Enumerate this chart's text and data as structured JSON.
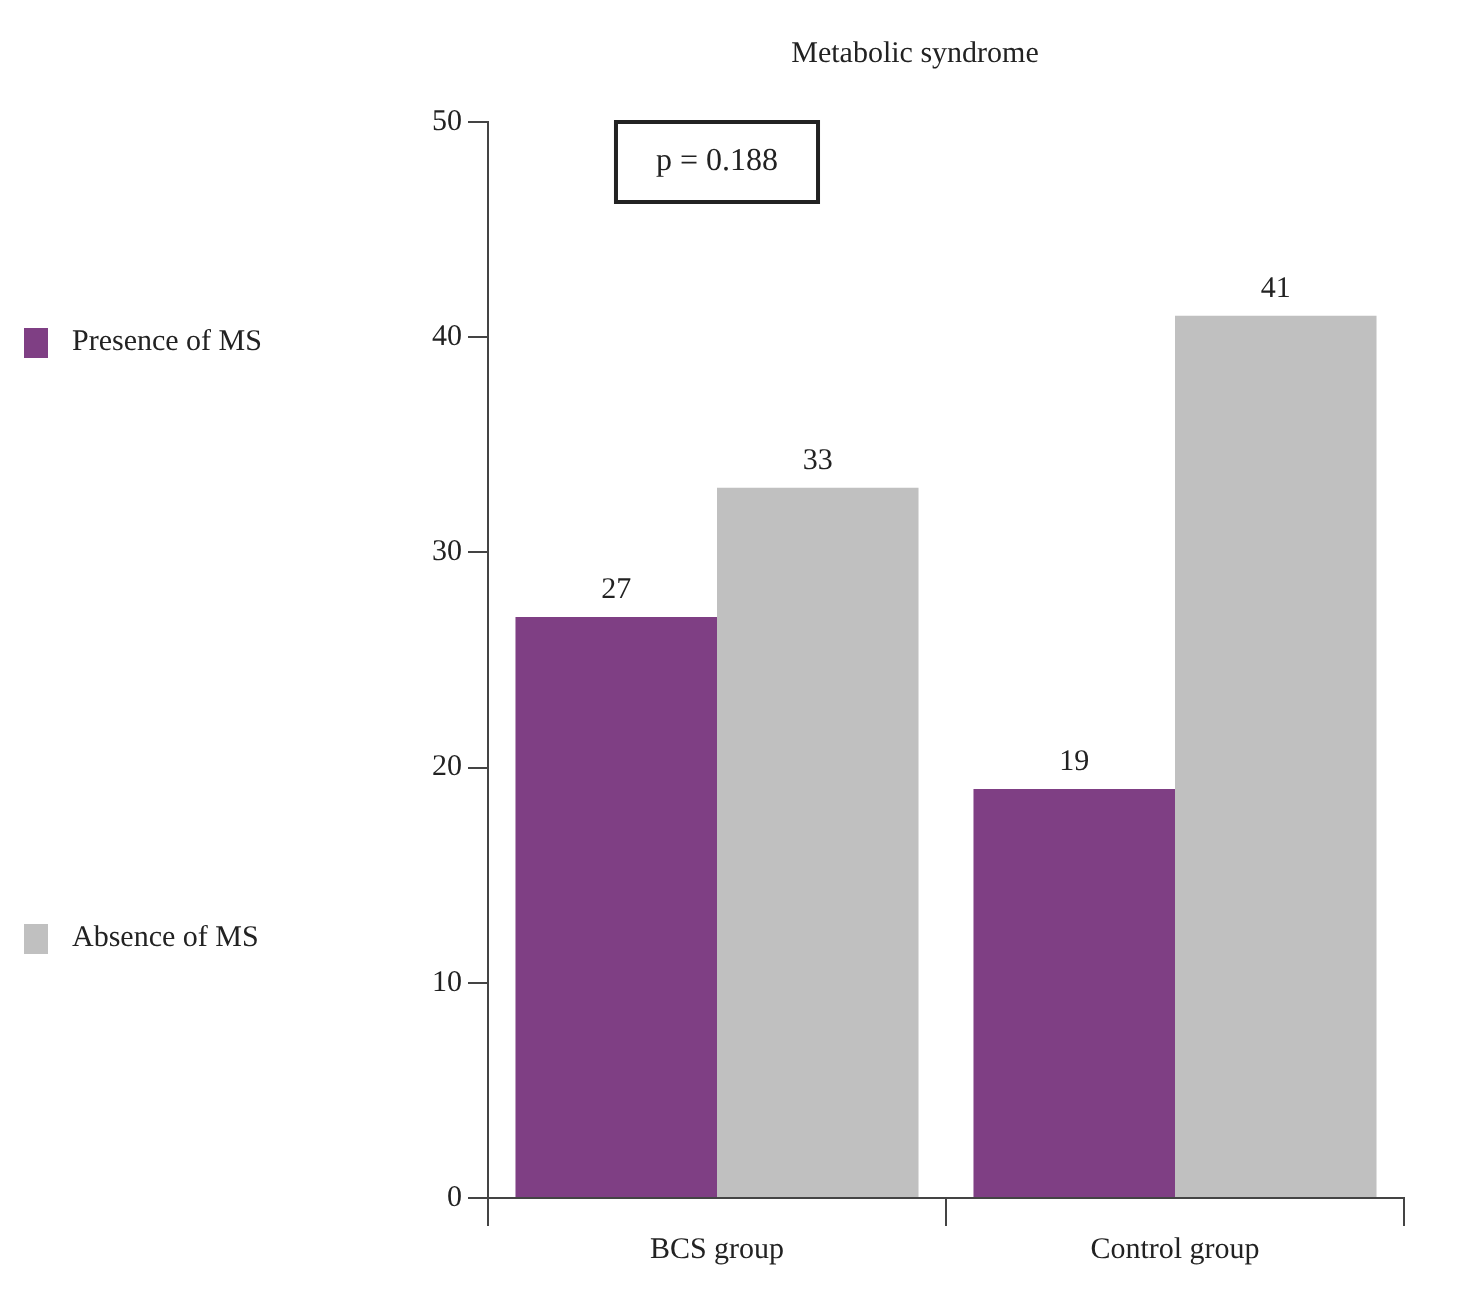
{
  "chart_data": {
    "type": "bar",
    "title": "Metabolic syndrome",
    "categories": [
      "BCS group",
      "Control group"
    ],
    "series": [
      {
        "name": "Presence of MS",
        "color": "#7f3f84",
        "values": [
          27,
          19
        ]
      },
      {
        "name": "Absence of MS",
        "color": "#c0c0c0",
        "values": [
          33,
          41
        ]
      }
    ],
    "ylim": [
      0,
      50
    ],
    "yticks": [
      0,
      10,
      20,
      30,
      40,
      50
    ],
    "grid": false,
    "legend": "left",
    "data_labels": true,
    "annotations": [
      "p = 0.188"
    ]
  }
}
